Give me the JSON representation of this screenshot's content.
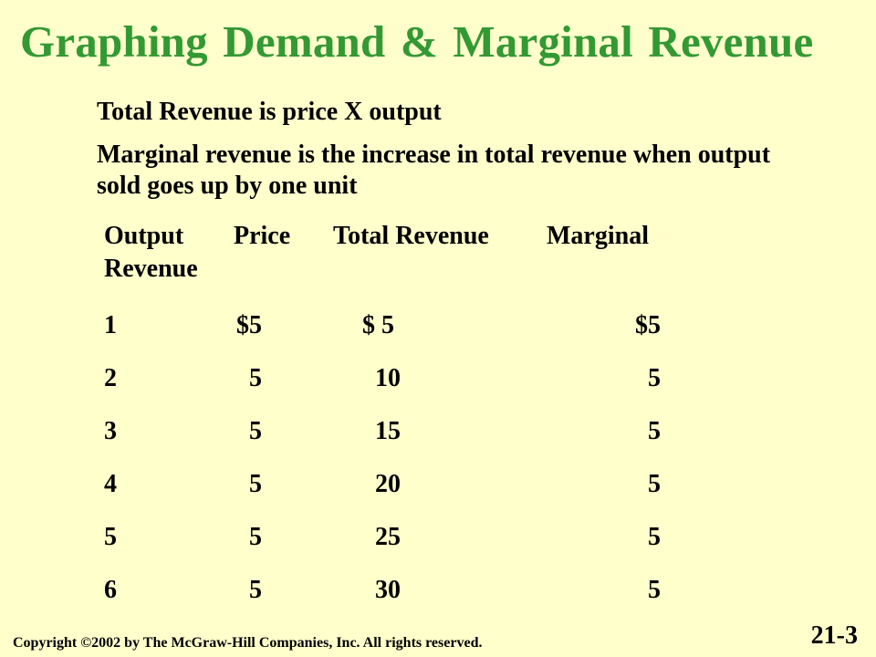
{
  "title": "Graphing Demand & Marginal Revenue",
  "paragraphs": {
    "p1": "Total Revenue is price X output",
    "p2": "Marginal revenue is the increase in total revenue when output sold goes up by one unit"
  },
  "table": {
    "headers": {
      "output": "Output",
      "price": "Price",
      "total_revenue": "Total Revenue",
      "marginal": "Marginal",
      "revenue": "Revenue"
    },
    "rows": [
      {
        "output": "1",
        "price": "$5",
        "total_revenue": "$ 5",
        "marginal_revenue": "$5"
      },
      {
        "output": "2",
        "price": "5",
        "total_revenue": "  10",
        "marginal_revenue": "5"
      },
      {
        "output": "3",
        "price": "5",
        "total_revenue": "  15",
        "marginal_revenue": "5"
      },
      {
        "output": "4",
        "price": "5",
        "total_revenue": "  20",
        "marginal_revenue": "5"
      },
      {
        "output": "5",
        "price": "5",
        "total_revenue": "  25",
        "marginal_revenue": "5"
      },
      {
        "output": "6",
        "price": "5",
        "total_revenue": "  30",
        "marginal_revenue": "5"
      }
    ]
  },
  "footer": {
    "copyright": "Copyright ©2002 by The McGraw-Hill Companies, Inc.  All rights reserved.",
    "slide_number": "21-3"
  }
}
